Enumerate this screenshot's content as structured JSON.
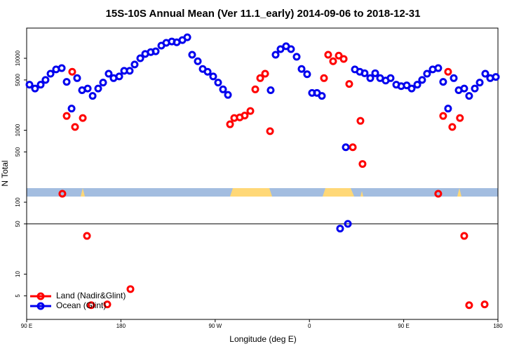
{
  "chart_data": {
    "type": "scatter",
    "title": "15S-10S Annual Mean (Ver 11.1_early)   2014-09-06 to 2018-12-31",
    "xlabel": "Longitude (deg E)",
    "ylabel": "N Total",
    "log_y": true,
    "xlim": [
      90,
      540
    ],
    "ylim": [
      2.35,
      26300
    ],
    "xticks": [
      {
        "value": 90,
        "label": "90 E"
      },
      180,
      {
        "value": 270,
        "label": "90 W"
      },
      {
        "value": 360,
        "label": "0"
      },
      {
        "value": 450,
        "label": "90 E"
      },
      {
        "value": 540,
        "label": "180"
      }
    ],
    "yticks": [
      5,
      10,
      50,
      100,
      500,
      1000,
      5000,
      10000
    ],
    "reference_line": 50,
    "legend": "bottom-left",
    "series": [
      {
        "name": "Land (Nadir&Glint)",
        "color": "#ff0000",
        "x": [
          124.1,
          133.5,
          128.2,
          136.2,
          143.6,
          147.6,
          151.6,
          167.0,
          189.1,
          284.2,
          288.2,
          293.5,
          298.2,
          303.6,
          308.3,
          313.0,
          317.7,
          322.4,
          373.9,
          377.9,
          382.6,
          388.0,
          392.7,
          398.0,
          401.4,
          408.7,
          410.7,
          483.0,
          492.4,
          487.7,
          496.4,
          503.7,
          507.8,
          512.5,
          527.3
        ],
        "values": [
          131,
          6500,
          1580,
          1110,
          1480,
          34,
          3.7,
          3.8,
          6.2,
          1210,
          1480,
          1510,
          1600,
          1850,
          3700,
          5300,
          6100,
          970,
          5300,
          11200,
          9100,
          10900,
          9800,
          4400,
          580,
          1350,
          340,
          131,
          6500,
          1580,
          1110,
          1480,
          34,
          3.7,
          3.8
        ]
      },
      {
        "name": "Ocean (Glint)",
        "color": "#0000ee",
        "x": [
          92.7,
          98.0,
          103.4,
          108.0,
          112.8,
          118.1,
          123.5,
          128.2,
          132.9,
          138.2,
          142.9,
          148.3,
          153.0,
          158.3,
          163.0,
          168.3,
          173.0,
          178.4,
          183.1,
          188.4,
          193.1,
          198.5,
          203.2,
          208.5,
          213.2,
          218.6,
          223.3,
          228.6,
          233.3,
          238.7,
          243.4,
          248.0,
          253.4,
          258.1,
          262.8,
          268.1,
          272.8,
          277.5,
          282.2,
          323.0,
          327.7,
          332.4,
          337.7,
          342.4,
          347.8,
          352.5,
          357.8,
          362.5,
          367.2,
          371.9,
          389.3,
          394.7,
          396.7,
          403.4,
          408.1,
          412.7,
          418.1,
          422.8,
          427.5,
          432.8,
          437.5,
          442.9,
          447.6,
          452.9,
          457.6,
          463.0,
          467.6,
          472.3,
          477.7,
          483.0,
          487.7,
          492.4,
          497.8,
          502.5,
          507.8,
          512.5,
          517.9,
          522.6,
          527.9,
          532.6,
          538.0
        ],
        "values": [
          4300,
          3800,
          4300,
          5000,
          6100,
          7000,
          7300,
          4700,
          2000,
          5300,
          3600,
          3800,
          3000,
          3800,
          4600,
          6100,
          5300,
          5600,
          6700,
          6700,
          8200,
          10000,
          11500,
          12200,
          12500,
          15000,
          16400,
          17100,
          16700,
          17900,
          19600,
          11200,
          9100,
          7100,
          6500,
          5600,
          4600,
          3700,
          3100,
          3600,
          11200,
          13400,
          14700,
          13400,
          10500,
          7100,
          6000,
          3300,
          3300,
          3000,
          43,
          580,
          50,
          7000,
          6500,
          6200,
          5300,
          6200,
          5300,
          4900,
          5300,
          4300,
          4100,
          4200,
          3800,
          4300,
          5000,
          6100,
          7000,
          7300,
          4700,
          2000,
          5300,
          3600,
          3800,
          3000,
          3800,
          4600,
          6100,
          5300,
          5500
        ]
      }
    ]
  }
}
